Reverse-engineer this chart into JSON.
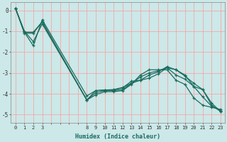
{
  "xlabel": "Humidex (Indice chaleur)",
  "bg_color": "#cce8e8",
  "grid_color": "#ff9999",
  "line_color": "#1a6b5e",
  "xlim": [
    -0.5,
    23.5
  ],
  "ylim": [
    -5.4,
    0.4
  ],
  "xtick_labels": [
    "0",
    "1",
    "2",
    "3",
    "",
    "",
    "",
    "",
    "8",
    "9",
    "10",
    "11",
    "12",
    "13",
    "14",
    "15",
    "16",
    "17",
    "18",
    "19",
    "20",
    "21",
    "22",
    "23"
  ],
  "xtick_positions": [
    0,
    1,
    2,
    3,
    4,
    5,
    6,
    7,
    8,
    9,
    10,
    11,
    12,
    13,
    14,
    15,
    16,
    17,
    18,
    19,
    20,
    21,
    22,
    23
  ],
  "yticks": [
    0,
    -1,
    -2,
    -3,
    -4,
    -5
  ],
  "series": [
    {
      "x": [
        0,
        1,
        2,
        3,
        8,
        9,
        10,
        11,
        12,
        13,
        14,
        15,
        16,
        17,
        18,
        19,
        20,
        21,
        22,
        23
      ],
      "y": [
        0.1,
        -1.1,
        -1.1,
        -0.55,
        -4.3,
        -4.05,
        -3.9,
        -3.9,
        -3.85,
        -3.55,
        -3.1,
        -2.85,
        -2.85,
        -2.85,
        -3.35,
        -3.55,
        -4.2,
        -4.55,
        -4.65,
        -4.75
      ]
    },
    {
      "x": [
        0,
        1,
        2,
        3,
        8,
        9,
        10,
        11,
        12,
        13,
        14,
        15,
        16,
        17,
        18,
        19,
        20,
        21,
        22,
        23
      ],
      "y": [
        0.1,
        -1.05,
        -1.05,
        -0.55,
        -4.3,
        -3.95,
        -3.85,
        -3.85,
        -3.8,
        -3.5,
        -3.2,
        -3.0,
        -2.9,
        -2.75,
        -3.1,
        -3.3,
        -3.65,
        -4.15,
        -4.6,
        -4.8
      ]
    },
    {
      "x": [
        0,
        1,
        2,
        3,
        8,
        9,
        10,
        11,
        12,
        13,
        14,
        15,
        16,
        17,
        18,
        19,
        20,
        21,
        22,
        23
      ],
      "y": [
        0.1,
        -1.0,
        -1.5,
        -0.65,
        -4.3,
        -3.85,
        -3.82,
        -3.82,
        -3.72,
        -3.4,
        -3.35,
        -3.25,
        -3.05,
        -2.75,
        -2.85,
        -3.15,
        -3.5,
        -3.8,
        -4.55,
        -4.85
      ]
    },
    {
      "x": [
        0,
        1,
        2,
        3,
        8,
        9,
        10,
        11,
        12,
        13,
        14,
        15,
        16,
        17,
        18,
        19,
        20,
        21,
        22,
        23
      ],
      "y": [
        0.1,
        -1.05,
        -1.7,
        -0.45,
        -4.1,
        -3.85,
        -3.82,
        -3.8,
        -3.7,
        -3.5,
        -3.35,
        -3.1,
        -2.95,
        -2.7,
        -2.85,
        -3.1,
        -3.65,
        -3.8,
        -4.45,
        -4.85
      ]
    }
  ]
}
